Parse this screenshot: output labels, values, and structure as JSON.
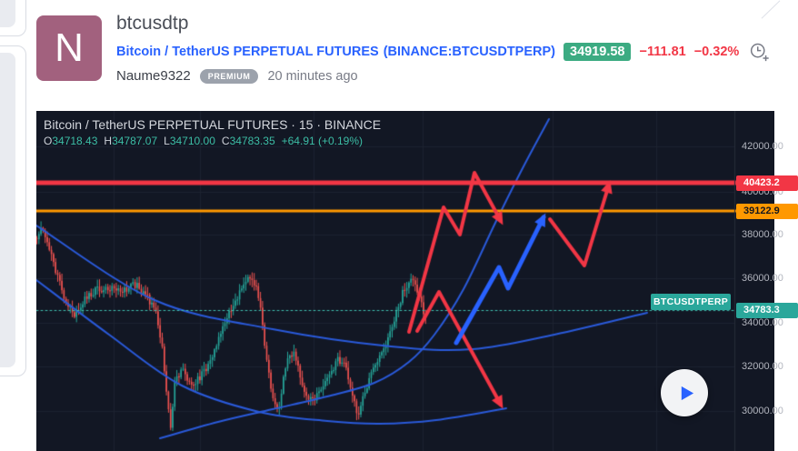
{
  "header": {
    "avatar_letter": "N",
    "title": "btcusdtp",
    "symbol_link": "Bitcoin / TetherUS PERPETUAL FUTURES",
    "exchange_link": "(BINANCE:BTCUSDTPERP)",
    "price_badge": "34919.58",
    "change_abs": "−111.81",
    "change_pct": "−0.32%",
    "author": "Naume9322",
    "plan_badge": "PREMIUM",
    "time_ago": "20 minutes ago",
    "accent_link_color": "#2962ff",
    "price_badge_bg": "#3cab82",
    "change_color": "#f23645"
  },
  "chart": {
    "legend_title": "Bitcoin / TetherUS PERPETUAL FUTURES · 15 · BINANCE",
    "ohlc": {
      "o_label": "O",
      "o": "34718.43",
      "h_label": "H",
      "h": "34787.07",
      "l_label": "L",
      "l": "34710.00",
      "c_label": "C",
      "c": "34783.35",
      "change": "+64.91 (+0.19%)"
    },
    "symbol_label": "BTCUSDTPERP"
  },
  "chart_data": {
    "type": "candlestick",
    "symbol": "BTCUSDTPERP",
    "exchange": "BINANCE",
    "interval": "15",
    "ohlc": {
      "open": 34718.43,
      "high": 34787.07,
      "low": 34710.0,
      "close": 34783.35,
      "change": "+64.91 (+0.19%)"
    },
    "ylim": [
      29000,
      43000
    ],
    "y_axis": [
      {
        "label": "42000.00",
        "price": 42000,
        "y": 161
      },
      {
        "label": "40000.00",
        "price": 40000,
        "y": 211
      },
      {
        "label": "38000.00",
        "price": 38000,
        "y": 258
      },
      {
        "label": "36000.00",
        "price": 36000,
        "y": 306
      },
      {
        "label": "34000.00",
        "price": 34000,
        "y": 355
      },
      {
        "label": "32000.00",
        "price": 32000,
        "y": 403
      },
      {
        "label": "30000.00",
        "price": 30000,
        "y": 452
      }
    ],
    "axis_badges": [
      {
        "label": "40423.2",
        "price": 40423.2,
        "y": 201,
        "bg": "#f23645",
        "fg": "#ffffff"
      },
      {
        "label": "39122.9",
        "price": 39122.9,
        "y": 232,
        "bg": "#ff9800",
        "fg": "#16181d"
      },
      {
        "label": "34783.3",
        "price": 34783.35,
        "y": 341,
        "bg": "#2aa79b",
        "fg": "#ffffff"
      }
    ],
    "levels": [
      {
        "price": 40423.2,
        "y": 201,
        "color": "#f23645",
        "thickness": 5,
        "style": "solid"
      },
      {
        "price": 39122.9,
        "y": 232,
        "color": "#ff9800",
        "thickness": 3,
        "style": "solid"
      },
      {
        "price": 34783.35,
        "y": 341,
        "color": "#3fbfae",
        "thickness": 1,
        "style": "dotted"
      }
    ],
    "grid": {
      "h_y": [
        161,
        211,
        258,
        306,
        355,
        403,
        452
      ],
      "v_x": [
        125,
        220,
        345,
        465,
        608,
        722
      ],
      "color": "#1d2330"
    },
    "curves": [
      {
        "name": "upper-channel-curve",
        "color": "#2a5ada",
        "w": 2,
        "pts": [
          [
            40,
            248
          ],
          [
            170,
            330
          ],
          [
            300,
            362
          ],
          [
            430,
            381
          ],
          [
            520,
            384
          ],
          [
            610,
            368
          ],
          [
            712,
            344
          ]
        ]
      },
      {
        "name": "lower-channel-curve",
        "color": "#2a5ada",
        "w": 2,
        "pts": [
          [
            40,
            308
          ],
          [
            120,
            368
          ],
          [
            200,
            424
          ],
          [
            285,
            453
          ],
          [
            360,
            463
          ],
          [
            418,
            466
          ],
          [
            480,
            462
          ],
          [
            557,
            449
          ]
        ]
      },
      {
        "name": "parabolic-curve",
        "color": "#2a5ada",
        "w": 2,
        "pts": [
          [
            176,
            482
          ],
          [
            240,
            464
          ],
          [
            300,
            450
          ],
          [
            360,
            436
          ],
          [
            412,
            421
          ],
          [
            450,
            398
          ],
          [
            478,
            368
          ],
          [
            510,
            318
          ],
          [
            545,
            245
          ],
          [
            575,
            185
          ],
          [
            604,
            131
          ]
        ]
      }
    ],
    "zigzags": [
      {
        "name": "red-breakout-path",
        "color": "#f23645",
        "w": 4,
        "pts": [
          [
            450,
            365
          ],
          [
            488,
            228
          ],
          [
            506,
            258
          ],
          [
            522,
            190
          ],
          [
            551,
            243
          ]
        ]
      },
      {
        "name": "red-breakdown-path",
        "color": "#f23645",
        "w": 4,
        "pts": [
          [
            459,
            364
          ],
          [
            483,
            321
          ],
          [
            551,
            445
          ]
        ]
      },
      {
        "name": "blue-impulse-path",
        "color": "#2962ff",
        "w": 5,
        "pts": [
          [
            502,
            377
          ],
          [
            549,
            294
          ],
          [
            559,
            317
          ],
          [
            598,
            239
          ]
        ]
      },
      {
        "name": "red-retest-path",
        "color": "#f23645",
        "w": 4,
        "pts": [
          [
            605,
            241
          ],
          [
            643,
            292
          ],
          [
            670,
            203
          ]
        ]
      }
    ],
    "candles": {
      "x0": 40,
      "x1": 468,
      "step": 2.3,
      "body": 1.6,
      "up": "#26a69a",
      "down": "#ef5350",
      "path": [
        [
          40,
          262
        ],
        [
          47,
          250
        ],
        [
          58,
          290
        ],
        [
          70,
          325
        ],
        [
          80,
          348
        ],
        [
          92,
          328
        ],
        [
          105,
          318
        ],
        [
          120,
          316
        ],
        [
          135,
          320
        ],
        [
          148,
          313
        ],
        [
          160,
          324
        ],
        [
          170,
          340
        ],
        [
          178,
          382
        ],
        [
          184,
          445
        ],
        [
          187,
          468
        ],
        [
          192,
          418
        ],
        [
          200,
          406
        ],
        [
          210,
          422
        ],
        [
          220,
          415
        ],
        [
          230,
          398
        ],
        [
          242,
          368
        ],
        [
          254,
          340
        ],
        [
          266,
          315
        ],
        [
          277,
          304
        ],
        [
          285,
          330
        ],
        [
          293,
          395
        ],
        [
          300,
          438
        ],
        [
          306,
          452
        ],
        [
          314,
          400
        ],
        [
          322,
          388
        ],
        [
          330,
          415
        ],
        [
          338,
          440
        ],
        [
          346,
          438
        ],
        [
          355,
          426
        ],
        [
          364,
          408
        ],
        [
          372,
          395
        ],
        [
          380,
          402
        ],
        [
          387,
          430
        ],
        [
          393,
          458
        ],
        [
          398,
          440
        ],
        [
          405,
          418
        ],
        [
          413,
          398
        ],
        [
          421,
          382
        ],
        [
          429,
          365
        ],
        [
          437,
          340
        ],
        [
          445,
          315
        ],
        [
          452,
          306
        ],
        [
          458,
          318
        ],
        [
          464,
          338
        ],
        [
          468,
          352
        ]
      ]
    }
  }
}
